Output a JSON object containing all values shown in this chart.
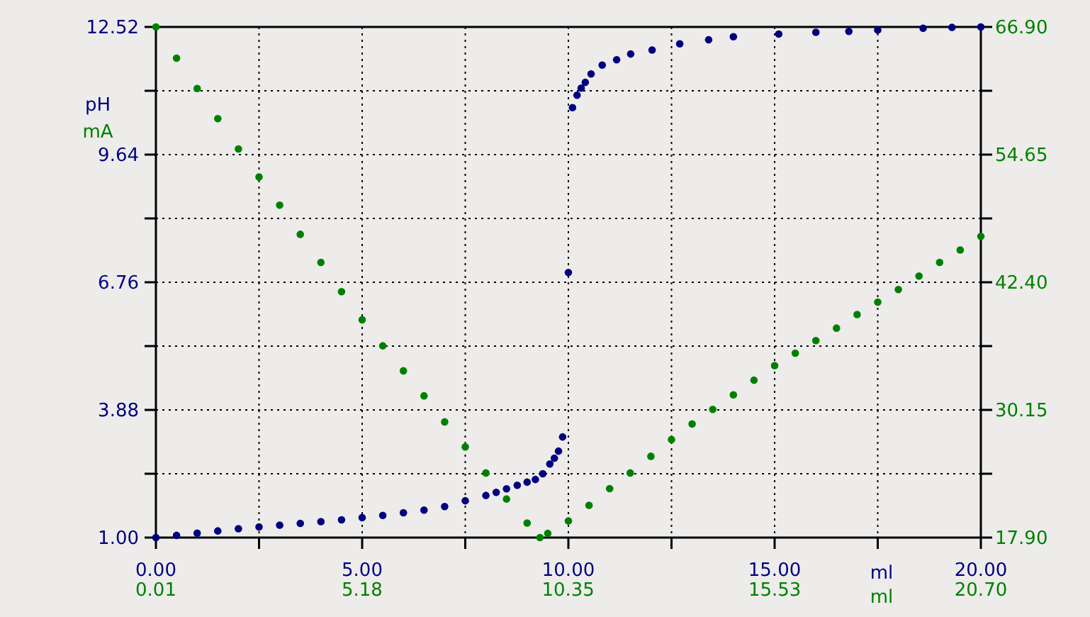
{
  "chart_data": {
    "type": "scatter",
    "xlabel": "ml",
    "x2label": "ml",
    "legend": "left",
    "xlim": [
      0,
      20
    ],
    "xticks": [
      {
        "value": 0,
        "label": "0.00"
      },
      {
        "value": 2.5,
        "label": null
      },
      {
        "value": 5,
        "label": "5.00"
      },
      {
        "value": 7.5,
        "label": null
      },
      {
        "value": 10,
        "label": "10.00"
      },
      {
        "value": 12.5,
        "label": null
      },
      {
        "value": 15,
        "label": "15.00"
      },
      {
        "value": 17.5,
        "label": null
      },
      {
        "value": 20,
        "label": "20.00"
      }
    ],
    "x2lim": [
      0.01,
      20.7
    ],
    "x2ticks": [
      {
        "value": 0.01,
        "label": "0.01"
      },
      {
        "value": 5.18,
        "label": "5.18"
      },
      {
        "value": 10.35,
        "label": "10.35"
      },
      {
        "value": 15.53,
        "label": "15.53"
      },
      {
        "value": 20.7,
        "label": "20.70"
      }
    ],
    "ylim": [
      1.0,
      12.52
    ],
    "yticks": [
      {
        "value": 1,
        "label": "1.00"
      },
      {
        "value": 2.44,
        "label": null
      },
      {
        "value": 3.88,
        "label": "3.88"
      },
      {
        "value": 5.32,
        "label": null
      },
      {
        "value": 6.76,
        "label": "6.76"
      },
      {
        "value": 8.2,
        "label": null
      },
      {
        "value": 9.64,
        "label": "9.64"
      },
      {
        "value": 11.08,
        "label": null
      },
      {
        "value": 12.52,
        "label": "12.52"
      }
    ],
    "y2lim": [
      17.9,
      66.9
    ],
    "y2ticks": [
      {
        "value": 17.9,
        "label": "17.90"
      },
      {
        "value": 24.025,
        "label": null
      },
      {
        "value": 30.15,
        "label": "30.15"
      },
      {
        "value": 36.275,
        "label": null
      },
      {
        "value": 42.4,
        "label": "42.40"
      },
      {
        "value": 48.525,
        "label": null
      },
      {
        "value": 54.65,
        "label": "54.65"
      },
      {
        "value": 60.775,
        "label": null
      },
      {
        "value": 66.9,
        "label": "66.90"
      }
    ],
    "grid": true,
    "marker": "circle",
    "series": [
      {
        "name": "pH",
        "color": "#000080",
        "x": [
          0,
          0.5,
          1,
          1.5,
          2,
          2.5,
          3,
          3.5,
          4,
          4.5,
          5,
          5.5,
          6,
          6.5,
          7,
          7.5,
          8,
          8.25,
          8.5,
          8.76,
          9,
          9.2,
          9.38,
          9.55,
          9.66,
          9.76,
          9.86,
          10,
          10.1,
          10.21,
          10.31,
          10.41,
          10.55,
          10.82,
          11.17,
          11.51,
          12.03,
          12.7,
          13.4,
          14,
          15.1,
          16,
          16.8,
          17.5,
          18.6,
          19.3,
          20
        ],
        "values": [
          1.0,
          1.05,
          1.1,
          1.15,
          1.2,
          1.24,
          1.28,
          1.32,
          1.36,
          1.4,
          1.45,
          1.5,
          1.56,
          1.62,
          1.7,
          1.83,
          1.95,
          2.02,
          2.1,
          2.18,
          2.25,
          2.31,
          2.44,
          2.66,
          2.79,
          2.95,
          3.27,
          6.98,
          10.7,
          10.98,
          11.14,
          11.27,
          11.46,
          11.66,
          11.78,
          11.91,
          12.0,
          12.14,
          12.23,
          12.3,
          12.36,
          12.4,
          12.42,
          12.45,
          12.49,
          12.51,
          12.52
        ]
      },
      {
        "name": "mA",
        "color": "#008000",
        "axis": "y2",
        "x": [
          0,
          0.5,
          1,
          1.5,
          2,
          2.5,
          3,
          3.5,
          4,
          4.5,
          5,
          5.5,
          6,
          6.5,
          7,
          7.5,
          8,
          8.5,
          9,
          9.31,
          9.5,
          10,
          10.5,
          11,
          11.5,
          12,
          12.5,
          13,
          13.5,
          14,
          14.5,
          15,
          15.5,
          16,
          16.5,
          17,
          17.5,
          18,
          18.5,
          19,
          19.5,
          20
        ],
        "values": [
          66.9,
          63.9,
          61.0,
          58.1,
          55.2,
          52.5,
          49.8,
          47.0,
          44.3,
          41.5,
          38.8,
          36.3,
          33.9,
          31.5,
          29.0,
          26.6,
          24.1,
          21.6,
          19.3,
          17.9,
          18.3,
          19.5,
          21.0,
          22.6,
          24.1,
          25.7,
          27.3,
          28.8,
          30.2,
          31.6,
          33.0,
          34.4,
          35.6,
          36.8,
          38.0,
          39.3,
          40.5,
          41.7,
          43.0,
          44.3,
          45.5,
          46.8
        ]
      }
    ]
  }
}
